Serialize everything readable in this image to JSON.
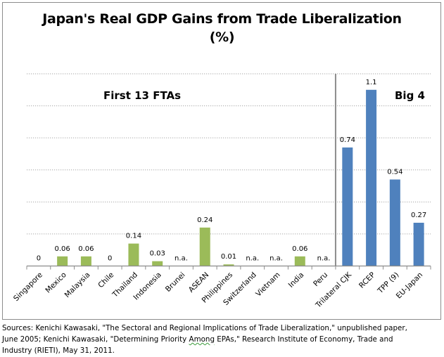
{
  "chart_data": {
    "type": "bar",
    "title": "Japan's Real GDP Gains from Trade Liberalization",
    "subtitle": "(%)",
    "xlabel": "",
    "ylabel": "",
    "ylim": [
      0,
      1.2
    ],
    "grid": true,
    "gridlines": [
      0.2,
      0.4,
      0.6,
      0.8,
      1.0,
      1.2
    ],
    "y_tick_labels_shown": false,
    "legend": "none",
    "categories": [
      "Singapore",
      "Mexico",
      "Malaysia",
      "Chile",
      "Thailand",
      "Indonesia",
      "Brunei",
      "ASEAN",
      "Philippines",
      "Switzerland",
      "Vietnam",
      "India",
      "Peru",
      "Trilateral CJK",
      "RCEP",
      "TPP (9)",
      "EU-Japan"
    ],
    "values": [
      0,
      0.06,
      0.06,
      0,
      0.14,
      0.03,
      null,
      0.24,
      0.01,
      null,
      null,
      0.06,
      null,
      0.74,
      1.1,
      0.54,
      0.27
    ],
    "data_labels": [
      "0",
      "0.06",
      "0.06",
      "0",
      "0.14",
      "0.03",
      "n.a.",
      "0.24",
      "0.01",
      "n.a.",
      "n.a.",
      "0.06",
      "n.a.",
      "0.74",
      "1.1",
      "0.54",
      "0.27"
    ],
    "groups": [
      {
        "name": "First 13 FTAs",
        "start": 0,
        "end": 12,
        "color": "#9BBB59"
      },
      {
        "name": "Big 4",
        "start": 13,
        "end": 16,
        "color": "#4F81BD"
      }
    ],
    "divider_after_index": 12
  },
  "colors": {
    "first_group": "#9BBB59",
    "big4_group": "#4F81BD",
    "gridline": "#a6a6a6",
    "axis": "#8c8c8c",
    "divider": "#8c8c8c"
  },
  "sources": {
    "line1": "Sources: Kenichi Kawasaki,  \"The Sectoral and Regional Implications of Trade Liberalization,\" unpublished paper,",
    "line2_pre": "June 2005; Kenichi Kawasaki,  \"Determining Priority ",
    "line2_flag": "Among",
    "line2_post": " EPAs,\"  Research Institute  of Economy, Trade and",
    "line3": "Industry (RIETI),  May 31, 2011."
  }
}
